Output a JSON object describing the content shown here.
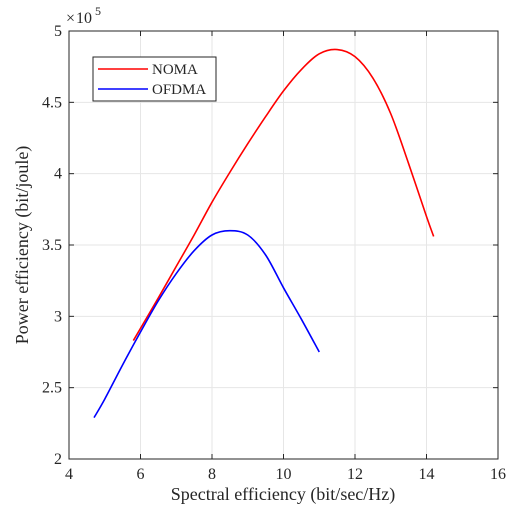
{
  "chart_data": {
    "type": "line",
    "title": "",
    "xlabel": "Spectral efficiency (bit/sec/Hz)",
    "ylabel": "Power efficiency (bit/joule)",
    "y_multiplier_base": "10",
    "y_multiplier_exp": "5",
    "xlim": [
      4,
      16
    ],
    "ylim": [
      2,
      5
    ],
    "xticks": [
      4,
      6,
      8,
      10,
      12,
      14,
      16
    ],
    "yticks": [
      2,
      2.5,
      3,
      3.5,
      4,
      4.5,
      5
    ],
    "xtick_labels": [
      "4",
      "6",
      "8",
      "10",
      "12",
      "14",
      "16"
    ],
    "ytick_labels": [
      "2",
      "2.5",
      "3",
      "3.5",
      "4",
      "4.5",
      "5"
    ],
    "grid": true,
    "legend_position": "top-left",
    "series": [
      {
        "name": "NOMA",
        "color": "#ff0000",
        "x": [
          5.8,
          6.5,
          7.0,
          7.5,
          8.0,
          8.5,
          9.0,
          9.5,
          10.0,
          10.5,
          11.0,
          11.5,
          12.0,
          12.5,
          13.0,
          13.5,
          14.0,
          14.2
        ],
        "y": [
          2.83,
          3.13,
          3.35,
          3.57,
          3.8,
          4.01,
          4.21,
          4.4,
          4.58,
          4.73,
          4.84,
          4.87,
          4.82,
          4.67,
          4.42,
          4.07,
          3.7,
          3.56
        ]
      },
      {
        "name": "OFDMA",
        "color": "#0000ff",
        "x": [
          4.7,
          5.0,
          5.5,
          6.0,
          6.5,
          7.0,
          7.5,
          8.0,
          8.5,
          9.0,
          9.5,
          10.0,
          10.5,
          11.0
        ],
        "y": [
          2.29,
          2.42,
          2.66,
          2.89,
          3.11,
          3.3,
          3.46,
          3.57,
          3.6,
          3.57,
          3.43,
          3.2,
          2.98,
          2.75
        ]
      }
    ]
  }
}
